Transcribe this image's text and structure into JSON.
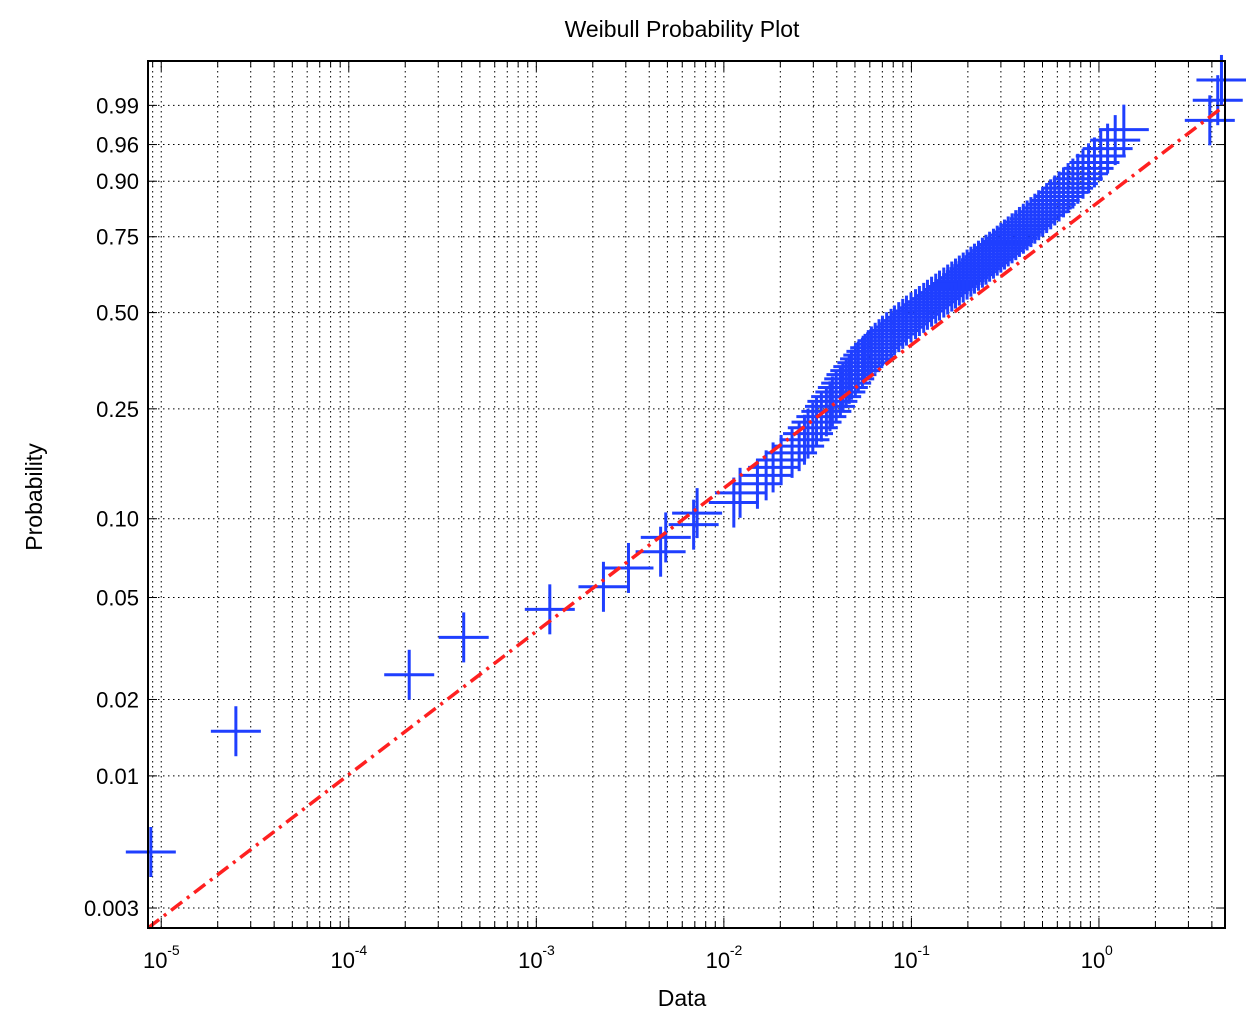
{
  "chart_data": {
    "type": "scatter",
    "title": "Weibull Probability Plot",
    "xlabel": "Data",
    "ylabel": "Probability",
    "x_scale": "log",
    "y_scale": "weibull",
    "xlim": [
      8.5e-06,
      4.7
    ],
    "ylim": [
      0.0025,
      0.999
    ],
    "grid": true,
    "x_ticks": [
      {
        "value": 1e-05,
        "base": "10",
        "exp": "-5"
      },
      {
        "value": 0.0001,
        "base": "10",
        "exp": "-4"
      },
      {
        "value": 0.001,
        "base": "10",
        "exp": "-3"
      },
      {
        "value": 0.01,
        "base": "10",
        "exp": "-2"
      },
      {
        "value": 0.1,
        "base": "10",
        "exp": "-1"
      },
      {
        "value": 1,
        "base": "10",
        "exp": "0"
      }
    ],
    "y_ticks": [
      {
        "value": 0.003,
        "label": "0.003"
      },
      {
        "value": 0.01,
        "label": "0.01"
      },
      {
        "value": 0.02,
        "label": "0.02"
      },
      {
        "value": 0.05,
        "label": "0.05"
      },
      {
        "value": 0.1,
        "label": "0.10"
      },
      {
        "value": 0.25,
        "label": "0.25"
      },
      {
        "value": 0.5,
        "label": "0.50"
      },
      {
        "value": 0.75,
        "label": "0.75"
      },
      {
        "value": 0.9,
        "label": "0.90"
      },
      {
        "value": 0.96,
        "label": "0.96"
      },
      {
        "value": 0.99,
        "label": "0.99"
      }
    ],
    "series": [
      {
        "marker": "+",
        "color": "#1f3fff",
        "points": [
          [
            8.8e-06,
            0.005
          ],
          [
            2.5e-05,
            0.015
          ],
          [
            0.00021,
            0.025
          ],
          [
            0.00041,
            0.035
          ],
          [
            0.00118,
            0.045
          ],
          [
            0.00228,
            0.055
          ],
          [
            0.0031,
            0.065
          ],
          [
            0.0046,
            0.075
          ],
          [
            0.0049,
            0.085
          ],
          [
            0.0069,
            0.095
          ],
          [
            0.0072,
            0.105
          ],
          [
            0.0113,
            0.115
          ],
          [
            0.0122,
            0.125
          ],
          [
            0.0151,
            0.135
          ],
          [
            0.0168,
            0.145
          ],
          [
            0.0183,
            0.155
          ],
          [
            0.0202,
            0.165
          ],
          [
            0.0231,
            0.175
          ],
          [
            0.0252,
            0.185
          ],
          [
            0.0269,
            0.195
          ],
          [
            0.0281,
            0.205
          ],
          [
            0.0298,
            0.215
          ],
          [
            0.0312,
            0.225
          ],
          [
            0.0331,
            0.235
          ],
          [
            0.0352,
            0.245
          ],
          [
            0.0368,
            0.255
          ],
          [
            0.0379,
            0.265
          ],
          [
            0.0397,
            0.275
          ],
          [
            0.0418,
            0.285
          ],
          [
            0.0431,
            0.295
          ],
          [
            0.0449,
            0.305
          ],
          [
            0.0466,
            0.315
          ],
          [
            0.0479,
            0.325
          ],
          [
            0.0502,
            0.335
          ],
          [
            0.0521,
            0.345
          ],
          [
            0.0548,
            0.355
          ],
          [
            0.0566,
            0.365
          ],
          [
            0.0589,
            0.375
          ],
          [
            0.0612,
            0.385
          ],
          [
            0.0641,
            0.395
          ],
          [
            0.0672,
            0.405
          ],
          [
            0.0701,
            0.415
          ],
          [
            0.0738,
            0.425
          ],
          [
            0.0779,
            0.435
          ],
          [
            0.0812,
            0.445
          ],
          [
            0.0856,
            0.455
          ],
          [
            0.0899,
            0.465
          ],
          [
            0.0941,
            0.475
          ],
          [
            0.0995,
            0.485
          ],
          [
            0.1052,
            0.495
          ],
          [
            0.1103,
            0.505
          ],
          [
            0.1163,
            0.515
          ],
          [
            0.1218,
            0.525
          ],
          [
            0.1281,
            0.535
          ],
          [
            0.1348,
            0.545
          ],
          [
            0.1412,
            0.555
          ],
          [
            0.1488,
            0.565
          ],
          [
            0.1561,
            0.575
          ],
          [
            0.1642,
            0.585
          ],
          [
            0.1718,
            0.595
          ],
          [
            0.1801,
            0.605
          ],
          [
            0.1889,
            0.615
          ],
          [
            0.1981,
            0.625
          ],
          [
            0.2076,
            0.635
          ],
          [
            0.2169,
            0.645
          ],
          [
            0.2278,
            0.655
          ],
          [
            0.2391,
            0.665
          ],
          [
            0.2498,
            0.675
          ],
          [
            0.2612,
            0.685
          ],
          [
            0.2739,
            0.695
          ],
          [
            0.2868,
            0.705
          ],
          [
            0.2998,
            0.715
          ],
          [
            0.3135,
            0.725
          ],
          [
            0.3282,
            0.735
          ],
          [
            0.3441,
            0.745
          ],
          [
            0.3601,
            0.755
          ],
          [
            0.3768,
            0.765
          ],
          [
            0.3952,
            0.775
          ],
          [
            0.4139,
            0.785
          ],
          [
            0.4338,
            0.795
          ],
          [
            0.4551,
            0.805
          ],
          [
            0.4772,
            0.815
          ],
          [
            0.5008,
            0.825
          ],
          [
            0.5261,
            0.835
          ],
          [
            0.5529,
            0.845
          ],
          [
            0.5812,
            0.855
          ],
          [
            0.6128,
            0.865
          ],
          [
            0.6472,
            0.875
          ],
          [
            0.6845,
            0.885
          ],
          [
            0.7261,
            0.895
          ],
          [
            0.7712,
            0.905
          ],
          [
            0.8221,
            0.915
          ],
          [
            0.8802,
            0.925
          ],
          [
            0.9461,
            0.935
          ],
          [
            1.0223,
            0.945
          ],
          [
            1.1121,
            0.955
          ],
          [
            1.2209,
            0.965
          ],
          [
            1.3571,
            0.975
          ],
          [
            3.9,
            0.982
          ],
          [
            4.3,
            0.992
          ],
          [
            4.5,
            0.997
          ]
        ]
      },
      {
        "type": "fit-line",
        "style": "dash-dot",
        "color": "#ff2020",
        "points": [
          [
            8.5e-06,
            0.0025
          ],
          [
            4.7,
            0.99
          ]
        ]
      }
    ]
  }
}
